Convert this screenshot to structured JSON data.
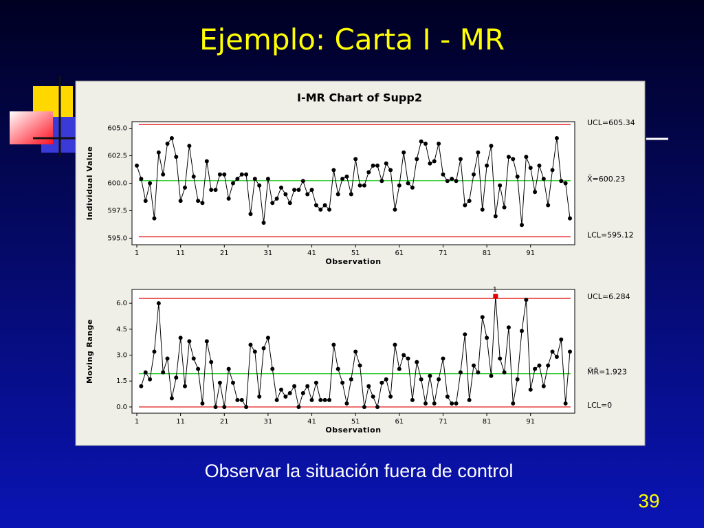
{
  "slide": {
    "title": "Ejemplo: Carta I - MR",
    "caption": "Observar la situación fuera de control",
    "page_number": "39"
  },
  "panel_title": "I-MR Chart of Supp2",
  "chart_data": [
    {
      "type": "line",
      "xlabel": "Observation",
      "ylabel": "Individual Value",
      "x": [
        1,
        2,
        3,
        4,
        5,
        6,
        7,
        8,
        9,
        10,
        11,
        12,
        13,
        14,
        15,
        16,
        17,
        18,
        19,
        20,
        21,
        22,
        23,
        24,
        25,
        26,
        27,
        28,
        29,
        30,
        31,
        32,
        33,
        34,
        35,
        36,
        37,
        38,
        39,
        40,
        41,
        42,
        43,
        44,
        45,
        46,
        47,
        48,
        49,
        50,
        51,
        52,
        53,
        54,
        55,
        56,
        57,
        58,
        59,
        60,
        61,
        62,
        63,
        64,
        65,
        66,
        67,
        68,
        69,
        70,
        71,
        72,
        73,
        74,
        75,
        76,
        77,
        78,
        79,
        80,
        81,
        82,
        83,
        84,
        85,
        86,
        87,
        88,
        89,
        90,
        91,
        92,
        93,
        94,
        95,
        96,
        97,
        98,
        99,
        100
      ],
      "series": [
        {
          "color": "#000000",
          "values": [
            601.6,
            600.4,
            598.4,
            600.0,
            596.8,
            602.8,
            600.8,
            603.6,
            604.1,
            602.4,
            598.4,
            599.6,
            603.4,
            600.6,
            598.4,
            598.2,
            602.0,
            599.4,
            599.4,
            600.8,
            600.8,
            598.6,
            600.0,
            600.4,
            600.8,
            600.8,
            597.2,
            600.4,
            599.8,
            596.4,
            600.4,
            598.2,
            598.6,
            599.6,
            599.0,
            598.2,
            599.4,
            599.4,
            600.2,
            599.0,
            599.4,
            598.0,
            597.6,
            598.0,
            597.6,
            601.2,
            599.0,
            600.4,
            600.6,
            599.0,
            602.2,
            599.8,
            599.8,
            601.0,
            601.6,
            601.6,
            600.2,
            601.8,
            601.2,
            597.6,
            599.8,
            602.8,
            600.0,
            599.6,
            602.2,
            603.8,
            603.6,
            601.8,
            602.0,
            603.6,
            600.8,
            600.2,
            600.4,
            600.2,
            602.2,
            598.0,
            598.4,
            600.8,
            602.8,
            597.6,
            601.6,
            603.4,
            597.0,
            599.8,
            597.8,
            602.4,
            602.2,
            600.6,
            596.2,
            602.4,
            601.4,
            599.2,
            601.6,
            600.4,
            598.0,
            601.2,
            604.1,
            600.2,
            600.0,
            596.8
          ]
        }
      ],
      "ref_lines": [
        {
          "value": 605.34,
          "label": "UCL=605.34",
          "color": "#e00000"
        },
        {
          "value": 600.23,
          "label": "X̄=600.23",
          "color": "#00c000"
        },
        {
          "value": 595.12,
          "label": "LCL=595.12",
          "color": "#e00000"
        }
      ],
      "xlim": [
        -0.1,
        101.1
      ],
      "ylim": [
        594.4,
        605.6
      ],
      "xticks": [
        1,
        11,
        21,
        31,
        41,
        51,
        61,
        71,
        81,
        91
      ],
      "yticks": [
        {
          "value": 595,
          "label": "595.0"
        },
        597.5,
        {
          "value": 600,
          "label": "600.0"
        },
        602.5,
        {
          "value": 605,
          "label": "605.0"
        }
      ]
    },
    {
      "type": "line",
      "xlabel": "Observation",
      "ylabel": "Moving Range",
      "x": [
        1,
        2,
        3,
        4,
        5,
        6,
        7,
        8,
        9,
        10,
        11,
        12,
        13,
        14,
        15,
        16,
        17,
        18,
        19,
        20,
        21,
        22,
        23,
        24,
        25,
        26,
        27,
        28,
        29,
        30,
        31,
        32,
        33,
        34,
        35,
        36,
        37,
        38,
        39,
        40,
        41,
        42,
        43,
        44,
        45,
        46,
        47,
        48,
        49,
        50,
        51,
        52,
        53,
        54,
        55,
        56,
        57,
        58,
        59,
        60,
        61,
        62,
        63,
        64,
        65,
        66,
        67,
        68,
        69,
        70,
        71,
        72,
        73,
        74,
        75,
        76,
        77,
        78,
        79,
        80,
        81,
        82,
        83,
        84,
        85,
        86,
        87,
        88,
        89,
        90,
        91,
        92,
        93,
        94,
        95,
        96,
        97,
        98,
        99,
        100
      ],
      "series": [
        {
          "color": "#000000",
          "values": [
            null,
            1.2,
            2.0,
            1.6,
            3.2,
            6.0,
            2.0,
            2.8,
            0.5,
            1.7,
            4.0,
            1.2,
            3.8,
            2.8,
            2.2,
            0.2,
            3.8,
            2.6,
            0.0,
            1.4,
            0.0,
            2.2,
            1.4,
            0.4,
            0.4,
            0.0,
            3.6,
            3.2,
            0.6,
            3.4,
            4.0,
            2.2,
            0.4,
            1.0,
            0.6,
            0.8,
            1.2,
            0.0,
            0.8,
            1.2,
            0.4,
            1.4,
            0.4,
            0.4,
            0.4,
            3.6,
            2.2,
            1.4,
            0.2,
            1.6,
            3.2,
            2.4,
            0.0,
            1.2,
            0.6,
            0.0,
            1.4,
            1.6,
            0.6,
            3.6,
            2.2,
            3.0,
            2.8,
            0.4,
            2.6,
            1.6,
            0.2,
            1.8,
            0.2,
            1.6,
            2.8,
            0.6,
            0.2,
            0.2,
            2.0,
            4.2,
            0.4,
            2.4,
            2.0,
            5.2,
            4.0,
            1.8,
            6.4,
            2.8,
            2.0,
            4.6,
            0.2,
            1.6,
            4.4,
            6.2,
            1.0,
            2.2,
            2.4,
            1.2,
            2.4,
            3.2,
            2.9,
            3.9,
            0.2,
            3.2
          ]
        }
      ],
      "ref_lines": [
        {
          "value": 6.284,
          "label": "UCL=6.284",
          "color": "#e00000"
        },
        {
          "value": 1.923,
          "label": "M̄R̄=1.923",
          "color": "#00c000"
        },
        {
          "value": 0,
          "label": "LCL=0",
          "color": "#e00000"
        }
      ],
      "flags": [
        {
          "x": 83,
          "label": "1",
          "color": "#e00000"
        }
      ],
      "xlim": [
        -0.1,
        101.1
      ],
      "ylim": [
        -0.36,
        6.8
      ],
      "xticks": [
        1,
        11,
        21,
        31,
        41,
        51,
        61,
        71,
        81,
        91
      ],
      "yticks": [
        {
          "value": 0,
          "label": "0.0"
        },
        1.5,
        {
          "value": 3,
          "label": "3.0"
        },
        4.5,
        {
          "value": 6,
          "label": "6.0"
        }
      ]
    }
  ]
}
